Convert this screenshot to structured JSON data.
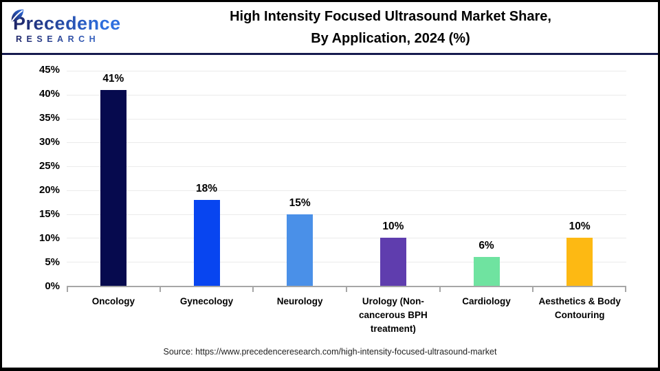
{
  "header": {
    "logo": {
      "name": "Precedence",
      "subtitle": "RESEARCH"
    },
    "title_line1": "High Intensity Focused Ultrasound Market Share,",
    "title_line2": "By Application, 2024 (%)"
  },
  "footer": {
    "source": "Source: https://www.precedenceresearch.com/high-intensity-focused-ultrasound-market"
  },
  "colors": {
    "header_divider": "#161a4e",
    "outer_border": "#000000",
    "axis_line": "#a6a6a6",
    "gridline": "#ebebeb",
    "logo_gradient_start": "#1e2466",
    "logo_gradient_end": "#2e6fdf"
  },
  "chart_data": {
    "type": "bar",
    "title": "High Intensity Focused Ultrasound Market Share, By Application, 2024 (%)",
    "categories": [
      "Oncology",
      "Gynecology",
      "Neurology",
      "Urology (Non-cancerous BPH treatment)",
      "Cardiology",
      "Aesthetics & Body Contouring"
    ],
    "values": [
      41,
      18,
      15,
      10,
      6,
      10
    ],
    "value_labels": [
      "41%",
      "18%",
      "15%",
      "10%",
      "6%",
      "10%"
    ],
    "bar_colors": [
      "#060a4e",
      "#0845f0",
      "#4a90e8",
      "#5f3dae",
      "#6fe3a0",
      "#fdb913"
    ],
    "xlabel": "",
    "ylabel": "",
    "ylim": [
      0,
      45
    ],
    "ytick_step": 5,
    "ytick_labels": [
      "0%",
      "5%",
      "10%",
      "15%",
      "20%",
      "25%",
      "30%",
      "35%",
      "40%",
      "45%"
    ],
    "grid": true,
    "legend": "none"
  }
}
